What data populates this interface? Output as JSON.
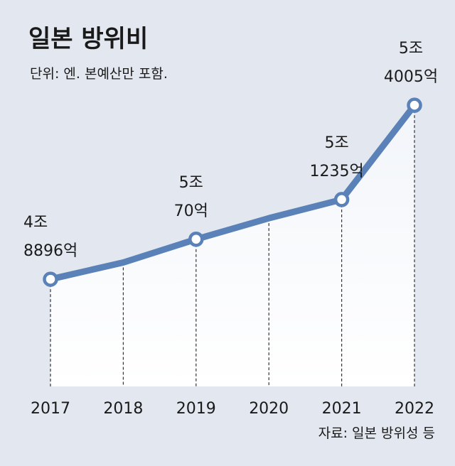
{
  "chart_data": {
    "type": "area",
    "title": "일본 방위비",
    "subtitle": "단위: 엔. 본예산만 포함.",
    "source": "자료: 일본 방위성 등",
    "x": [
      "2017",
      "2018",
      "2019",
      "2020",
      "2021",
      "2022"
    ],
    "values": [
      48896,
      49388,
      50070,
      50688,
      51235,
      54005
    ],
    "markers": [
      true,
      false,
      true,
      false,
      true,
      true
    ],
    "data_labels": [
      [
        "4조",
        "8896억"
      ],
      null,
      [
        "5조",
        "70억"
      ],
      null,
      [
        "5조",
        "1235억"
      ],
      [
        "5조",
        "4005억"
      ]
    ],
    "ylabel": "",
    "xlabel": "",
    "ylim": [
      47500,
      54800
    ],
    "colors": {
      "background": "#e3e8f0",
      "line": "#5a82b8",
      "marker_fill": "#ffffff",
      "area_top": "#f2f5fa",
      "area_bottom": "#ffffff",
      "text": "#1a1a1a"
    }
  }
}
